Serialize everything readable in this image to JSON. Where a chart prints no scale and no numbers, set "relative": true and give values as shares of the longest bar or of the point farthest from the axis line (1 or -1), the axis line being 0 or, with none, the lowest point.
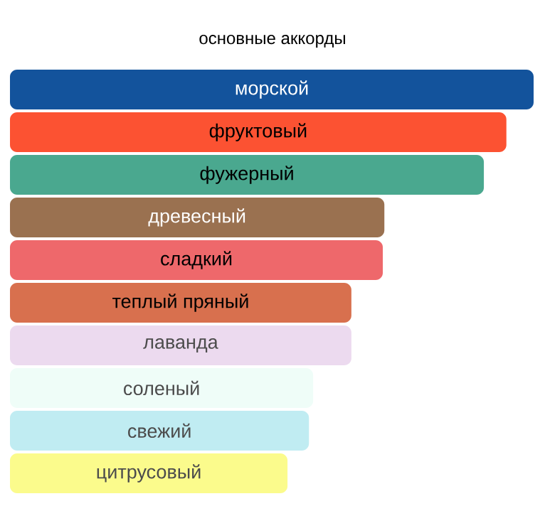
{
  "chart_data": {
    "type": "bar",
    "orientation": "horizontal",
    "relative": true,
    "title": "основные аккорды",
    "categories": [
      "морской",
      "фруктовый",
      "фужерный",
      "древесный",
      "сладкий",
      "теплый пряный",
      "лаванда",
      "соленый",
      "свежий",
      "цитрусовый"
    ],
    "values": [
      1,
      0.948,
      0.905,
      0.715,
      0.712,
      0.652,
      0.652,
      0.579,
      0.571,
      0.53
    ],
    "colors": [
      "#13539c",
      "#fc5232",
      "#4aa88f",
      "#9a7150",
      "#ee686b",
      "#d8704e",
      "#ecdaef",
      "#effdf8",
      "#c0ecf2",
      "#fbfb8c"
    ]
  }
}
